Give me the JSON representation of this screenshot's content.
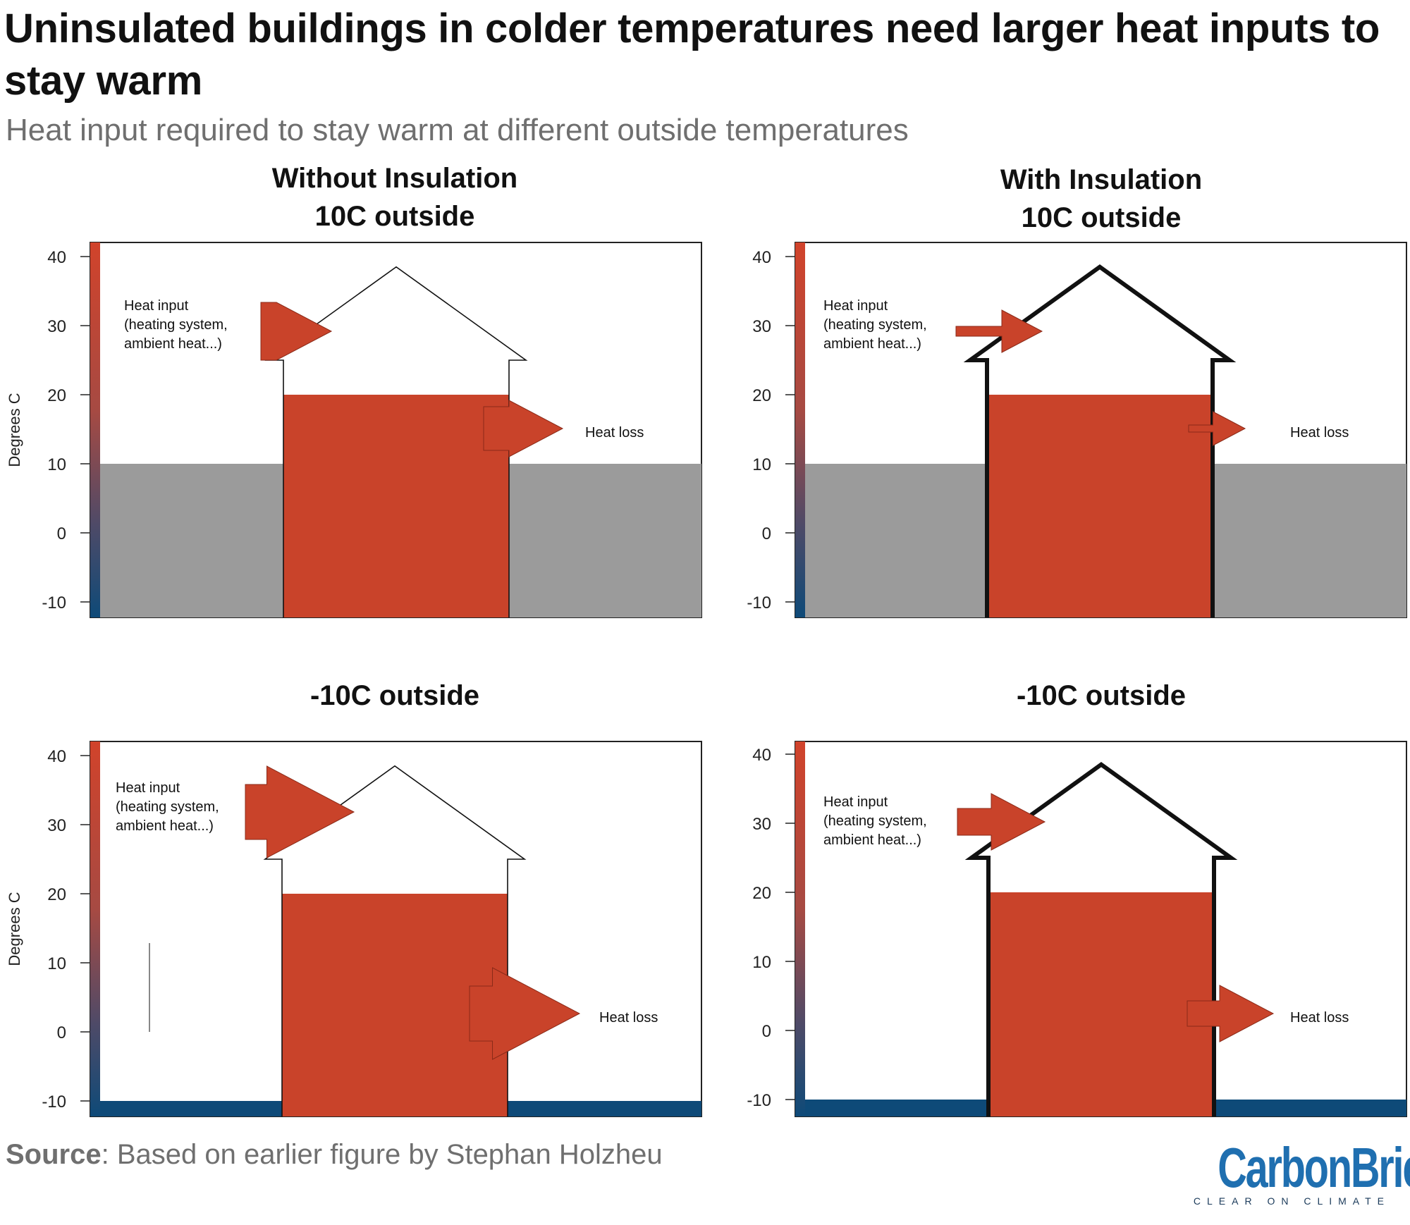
{
  "title": "Uninsulated buildings in colder temperatures need larger heat inputs to stay warm",
  "subtitle": "Heat input required to stay warm at different outside temperatures",
  "column_headings": {
    "left": "Without Insulation",
    "right": "With Insulation"
  },
  "panels": [
    {
      "heading": "10C outside",
      "insulated": false,
      "outside_temp": 10,
      "inside_temp": 20,
      "heat_input_label": [
        "Heat input",
        "(heating system,",
        "ambient heat...)"
      ],
      "heat_loss_label": "Heat loss"
    },
    {
      "heading": "10C outside",
      "insulated": true,
      "outside_temp": 10,
      "inside_temp": 20,
      "heat_input_label": [
        "Heat input",
        "(heating system,",
        "ambient heat...)"
      ],
      "heat_loss_label": "Heat loss"
    },
    {
      "heading": "-10C outside",
      "insulated": false,
      "outside_temp": -10,
      "inside_temp": 20,
      "heat_input_label": [
        "Heat input",
        "(heating system,",
        "ambient heat...)"
      ],
      "heat_loss_label": "Heat loss"
    },
    {
      "heading": "-10C outside",
      "insulated": true,
      "outside_temp": -10,
      "inside_temp": 20,
      "heat_input_label": [
        "Heat input",
        "(heating system,",
        "ambient heat...)"
      ],
      "heat_loss_label": "Heat loss"
    }
  ],
  "axis": {
    "label": "Degrees C",
    "ticks": [
      "40",
      "30",
      "20",
      "10",
      "0",
      "-10"
    ],
    "tick_values": [
      40,
      30,
      20,
      10,
      0,
      -10
    ]
  },
  "colors": {
    "heat_red": "#c9432a",
    "cold_blue": "#0e4a78",
    "outside_grey": "#9b9b9b"
  },
  "source": {
    "label": "Source",
    "text": ": Based on earlier figure by Stephan Holzheu"
  },
  "logo": {
    "word": "CarbonBrief",
    "tagline": "CLEAR ON CLIMATE"
  }
}
